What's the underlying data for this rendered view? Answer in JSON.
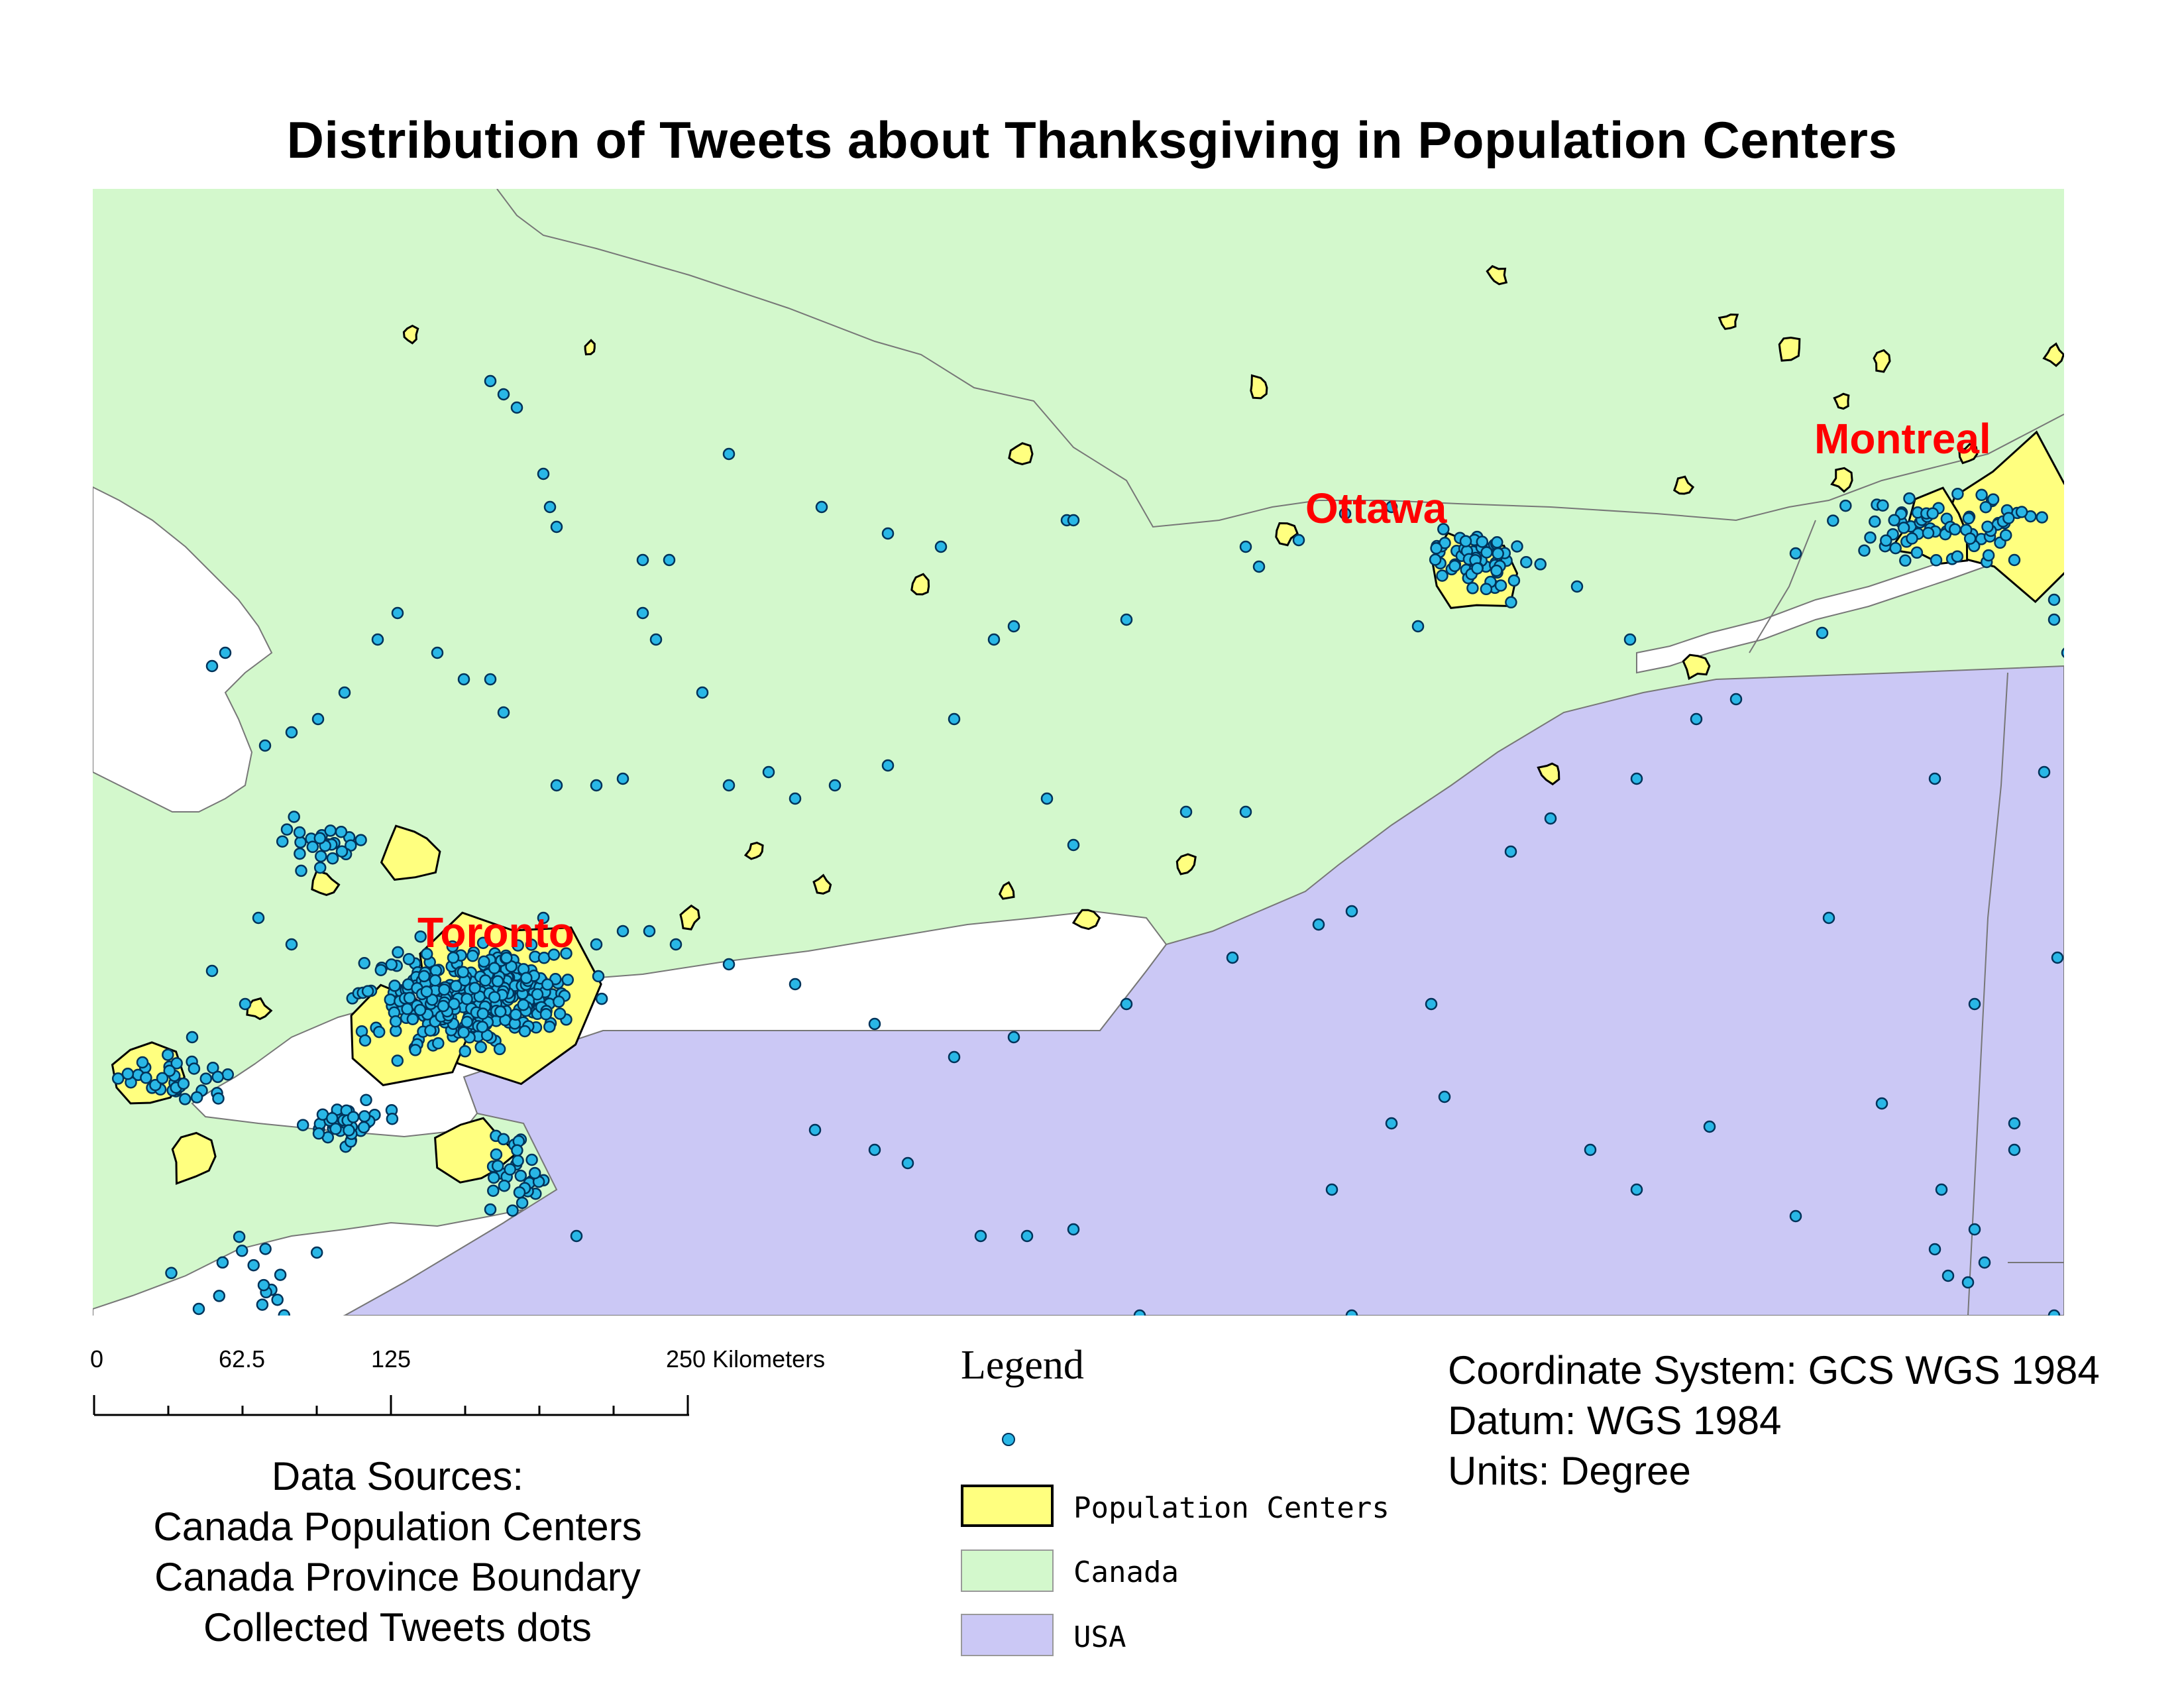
{
  "title": "Distribution of Tweets about Thanksgiving in Population Centers",
  "map": {
    "colors": {
      "canada": "#d3f8cc",
      "usa": "#cbc8f5",
      "population_centers": "#ffff7f",
      "tweet_dot": "#29b7e6",
      "tweet_outline": "#00335a",
      "city_label": "#ff0000"
    },
    "cities": [
      {
        "name": "Toronto"
      },
      {
        "name": "Ottawa"
      },
      {
        "name": "Montreal"
      }
    ]
  },
  "scale_bar": {
    "ticks": [
      "0",
      "62.5",
      "125",
      "250 Kilometers"
    ]
  },
  "data_sources": {
    "heading": "Data Sources:",
    "items": [
      "Canada Population Centers",
      "Canada Province Boundary",
      "Collected Tweets dots"
    ]
  },
  "legend": {
    "title": "Legend",
    "items": [
      {
        "label": "",
        "symbol": "tweet-dot"
      },
      {
        "label": "Population Centers",
        "symbol": "yellow-polygon"
      },
      {
        "label": "Canada",
        "symbol": "green-polygon"
      },
      {
        "label": "USA",
        "symbol": "purple-polygon"
      }
    ]
  },
  "coordinate_info": {
    "system": "Coordinate System: GCS WGS 1984",
    "datum": "Datum: WGS 1984",
    "units": "Units: Degree"
  }
}
